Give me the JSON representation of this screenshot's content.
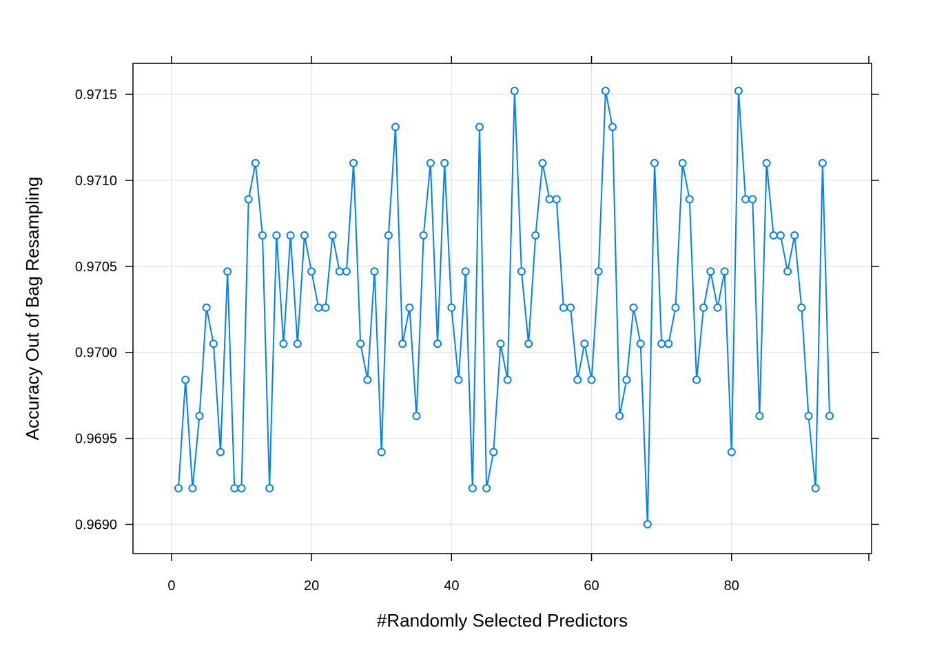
{
  "chart_data": {
    "type": "line",
    "title": "",
    "xlabel": "#Randomly Selected Predictors",
    "ylabel": "Accuracy Out of Bag Resampling",
    "xlim": [
      -5.5,
      100
    ],
    "ylim": [
      0.96883,
      0.97168
    ],
    "xticks": [
      0,
      20,
      40,
      60,
      80
    ],
    "xtick_labels": [
      "0",
      "20",
      "40",
      "60",
      "80"
    ],
    "yticks": [
      0.969,
      0.9695,
      0.97,
      0.9705,
      0.971,
      0.9715
    ],
    "ytick_labels": [
      "0.9690",
      "0.9695",
      "0.9700",
      "0.9705",
      "0.9710",
      "0.9715"
    ],
    "grid": true,
    "legend": "none",
    "series": [
      {
        "color": "#0080FF",
        "marker": "open-circle",
        "x": [
          1,
          2,
          3,
          4,
          5,
          6,
          7,
          8,
          9,
          10,
          11,
          12,
          13,
          14,
          15,
          16,
          17,
          18,
          19,
          20,
          21,
          22,
          23,
          24,
          25,
          26,
          27,
          28,
          29,
          30,
          31,
          32,
          33,
          34,
          35,
          36,
          37,
          38,
          39,
          40,
          41,
          42,
          43,
          44,
          45,
          46,
          47,
          48,
          49,
          50,
          51,
          52,
          53,
          54,
          55,
          56,
          57,
          58,
          59,
          60,
          61,
          62,
          63,
          64,
          65,
          66,
          67,
          68,
          69,
          70,
          71,
          72,
          73,
          74,
          75,
          76,
          77,
          78,
          79,
          80,
          81,
          82,
          83,
          84,
          85,
          86,
          87,
          88,
          89,
          90,
          91,
          92,
          93,
          94
        ],
        "y": [
          0.96921,
          0.96984,
          0.96921,
          0.96963,
          0.97026,
          0.97005,
          0.96942,
          0.97047,
          0.96921,
          0.96921,
          0.97089,
          0.9711,
          0.97068,
          0.96921,
          0.97068,
          0.97005,
          0.97068,
          0.97005,
          0.97068,
          0.97047,
          0.97026,
          0.97026,
          0.97068,
          0.97047,
          0.97047,
          0.9711,
          0.97005,
          0.96984,
          0.97047,
          0.96942,
          0.97068,
          0.97131,
          0.97005,
          0.97026,
          0.96963,
          0.97068,
          0.9711,
          0.97005,
          0.9711,
          0.97026,
          0.96984,
          0.97047,
          0.96921,
          0.97131,
          0.96921,
          0.96942,
          0.97005,
          0.96984,
          0.97152,
          0.97047,
          0.97005,
          0.97068,
          0.9711,
          0.97089,
          0.97089,
          0.97026,
          0.97026,
          0.96984,
          0.97005,
          0.96984,
          0.97047,
          0.97152,
          0.97131,
          0.96963,
          0.96984,
          0.97026,
          0.97005,
          0.969,
          0.9711,
          0.97005,
          0.97005,
          0.97026,
          0.9711,
          0.97089,
          0.96984,
          0.97026,
          0.97047,
          0.97026,
          0.97047,
          0.96942,
          0.97152,
          0.97089,
          0.97089,
          0.96963,
          0.9711,
          0.97068,
          0.97068,
          0.97047,
          0.97068,
          0.97026,
          0.96963,
          0.96921,
          0.9711,
          0.96963
        ]
      }
    ]
  }
}
